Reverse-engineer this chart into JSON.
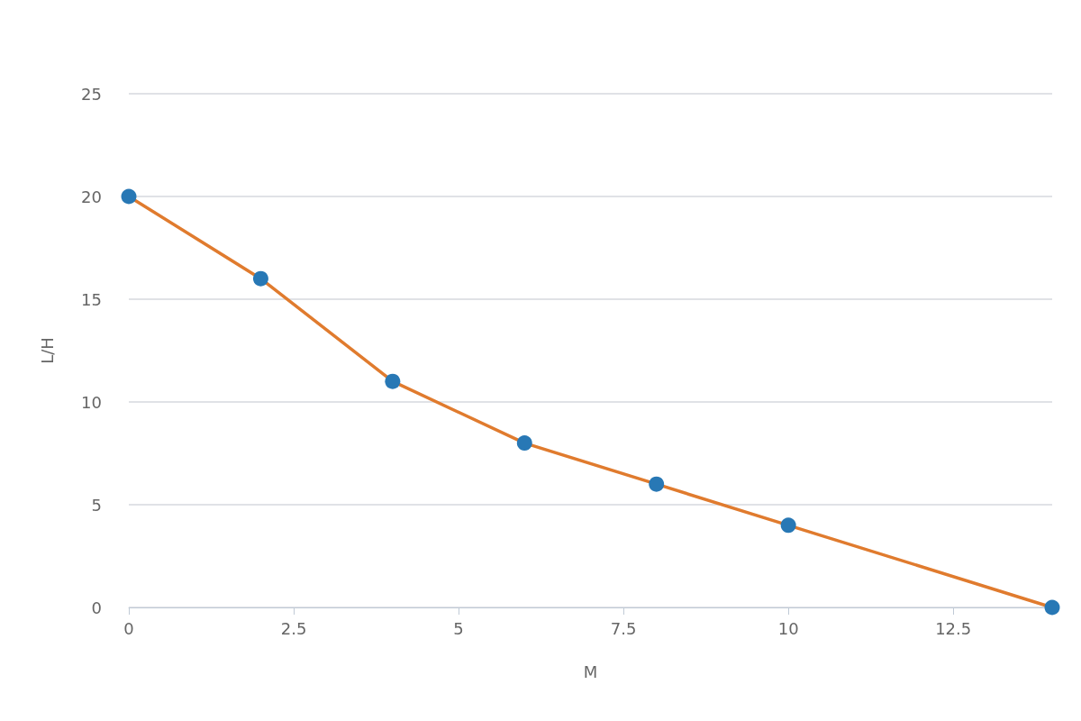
{
  "chart_data": {
    "type": "line",
    "xlabel": "M",
    "ylabel": "L/H",
    "x": [
      0,
      2,
      4,
      6,
      8,
      10,
      14
    ],
    "series": [
      {
        "color": "#e07b2e",
        "colors": [
          "#2878b5",
          "#2878b5",
          "#2878b5",
          "#2878b5",
          "#2878b5",
          "#2878b5",
          "#2878b5"
        ],
        "values": [
          20,
          16,
          11,
          8,
          6,
          4,
          0
        ]
      }
    ],
    "marker": "circle",
    "xlim": [
      0,
      14
    ],
    "xticks": [
      0,
      2.5,
      5,
      7.5,
      10,
      12.5
    ],
    "ylim": [
      0,
      25
    ],
    "yticks": [
      0,
      5,
      10,
      15,
      20,
      25
    ],
    "grid": "y"
  }
}
